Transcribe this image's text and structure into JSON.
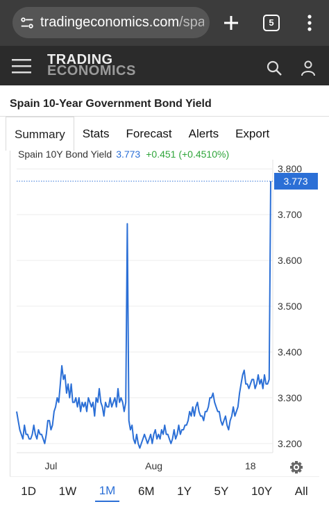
{
  "browser": {
    "url_host": "tradingeconomics.com",
    "url_path": "/spai",
    "tab_count": "5"
  },
  "site": {
    "brand_line1": "TRADING",
    "brand_line2": "ECONOMICS"
  },
  "page": {
    "title": "Spain 10-Year Government Bond Yield"
  },
  "tabs": [
    "Summary",
    "Stats",
    "Forecast",
    "Alerts",
    "Export"
  ],
  "active_tab": "Summary",
  "legend": {
    "name": "Spain 10Y Bond Yield",
    "value": "3.773",
    "change": "+0.451 (+0.4510%)"
  },
  "ranges": [
    "1D",
    "1W",
    "1M",
    "6M",
    "1Y",
    "5Y",
    "10Y",
    "All"
  ],
  "active_range": "1M",
  "colors": {
    "line": "#2b6fd6",
    "up": "#2fa53a",
    "header": "#2b2b2b"
  },
  "chart_data": {
    "type": "line",
    "series": [
      {
        "name": "Spain 10Y Bond Yield",
        "values": [
          3.27,
          3.25,
          3.23,
          3.22,
          3.21,
          3.24,
          3.22,
          3.22,
          3.21,
          3.21,
          3.22,
          3.24,
          3.22,
          3.21,
          3.23,
          3.22,
          3.22,
          3.21,
          3.2,
          3.22,
          3.25,
          3.25,
          3.23,
          3.24,
          3.27,
          3.28,
          3.3,
          3.29,
          3.33,
          3.37,
          3.34,
          3.35,
          3.31,
          3.33,
          3.3,
          3.33,
          3.29,
          3.29,
          3.3,
          3.28,
          3.3,
          3.27,
          3.29,
          3.28,
          3.29,
          3.27,
          3.3,
          3.29,
          3.28,
          3.29,
          3.26,
          3.3,
          3.29,
          3.32,
          3.29,
          3.28,
          3.26,
          3.29,
          3.28,
          3.28,
          3.3,
          3.28,
          3.29,
          3.3,
          3.28,
          3.32,
          3.29,
          3.3,
          3.29,
          3.27,
          3.29,
          3.68,
          3.25,
          3.23,
          3.24,
          3.21,
          3.2,
          3.22,
          3.2,
          3.19,
          3.2,
          3.21,
          3.22,
          3.21,
          3.2,
          3.21,
          3.22,
          3.2,
          3.22,
          3.23,
          3.21,
          3.22,
          3.21,
          3.23,
          3.22,
          3.24,
          3.22,
          3.22,
          3.21,
          3.2,
          3.21,
          3.23,
          3.21,
          3.22,
          3.24,
          3.22,
          3.23,
          3.23,
          3.24,
          3.24,
          3.25,
          3.27,
          3.26,
          3.28,
          3.26,
          3.28,
          3.29,
          3.27,
          3.26,
          3.26,
          3.25,
          3.27,
          3.27,
          3.28,
          3.3,
          3.3,
          3.31,
          3.29,
          3.28,
          3.27,
          3.27,
          3.25,
          3.24,
          3.25,
          3.26,
          3.24,
          3.23,
          3.25,
          3.26,
          3.28,
          3.26,
          3.27,
          3.28,
          3.31,
          3.33,
          3.35,
          3.36,
          3.33,
          3.33,
          3.32,
          3.33,
          3.34,
          3.34,
          3.32,
          3.33,
          3.35,
          3.33,
          3.34,
          3.32,
          3.35,
          3.33,
          3.33,
          3.34,
          3.773
        ]
      }
    ],
    "x_ticks": [
      "Jul",
      "Aug",
      "18"
    ],
    "y_ticks": [
      "3.200",
      "3.300",
      "3.400",
      "3.500",
      "3.600",
      "3.700",
      "3.800"
    ],
    "ylim": [
      3.18,
      3.82
    ],
    "last_value_label": "3.773",
    "grid": true
  }
}
